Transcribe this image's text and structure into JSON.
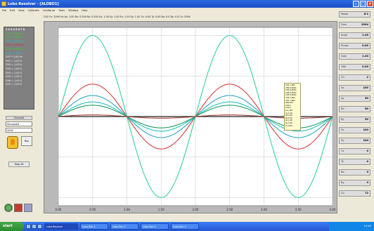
{
  "window": {
    "title": "Lobo Resolver - [ALOBO1]"
  },
  "menubar": [
    "File",
    "Edit",
    "View",
    "Calibrate",
    "Configure",
    "Tools",
    "Window",
    "Help"
  ],
  "info_line": "CH2 Fx: 2094 Hz  Ax: 1.00  Rx: 0.500  Ry: 0.500  Sx: 1.00  Sy: 1.00  Ex: 1.00  Ey: 1.00  Tx: 0.00  Ty: 0.00  Bx: 0.0  By: 0.0  Ch: 2094",
  "readout": {
    "header": "1 2 3 4 5 6 7 8",
    "lines": [
      {
        "text": "CH1 * 1.00 Vs",
        "color": "#20e020"
      },
      {
        "text": "CH2 * 0.500 Vs",
        "color": "#20e020"
      },
      {
        "text": "CH3 * 0.500 Vs",
        "color": "#20c8c8"
      },
      {
        "text": "CH4 * 0.500 Vs",
        "color": "#e02020"
      },
      {
        "text": "CH5 * 0.500 Vs",
        "color": "#20e020"
      },
      {
        "text": "CH6 * 1.00 Vs",
        "color": "#20c8c8"
      },
      {
        "text": "CH7 * 1.00 Vs",
        "color": "#ffffff"
      },
      {
        "text": "CH1 = 1.00 V",
        "color": "#ffffff"
      },
      {
        "text": "CH2 = 1.00 V",
        "color": "#ffffff"
      },
      {
        "text": "CH3 = 1.00 V",
        "color": "#ffffff"
      },
      {
        "text": "CH4 = 1.00 V",
        "color": "#ffffff"
      },
      {
        "text": "CH5 = 1.00 V",
        "color": "#ffffff"
      },
      {
        "text": "CH6 = 1.00 V",
        "color": "#ffffff"
      },
      {
        "text": "CH7 = 1.00 V",
        "color": "#ffffff"
      }
    ]
  },
  "controls": {
    "label": "Channel",
    "field1": "Sinusoidal",
    "field2": "2094",
    "button": "Run",
    "bottom": "Stop All"
  },
  "legend": [
    "CH1  1.00V",
    "CH2  0.500V",
    "CH3  0.500V",
    "CH4  0.500V",
    "CH5  0.500V",
    "CH6  1.00V",
    "CH7  1.00V",
    "2094 Hz",
    "0.00 s",
    "1.00 s",
    "Ax 1.00",
    "Ay 1.00",
    "Rx 0.50",
    "Ry 0.50",
    "Sx 1.00",
    "Sy 1.00",
    "Tx 0.00"
  ],
  "right_panel": [
    {
      "k": "Mode",
      "v": "X-1"
    },
    {
      "k": "Freq",
      "v": "2094"
    },
    {
      "k": "Ampl",
      "v": "1.00"
    },
    {
      "k": "Phase",
      "v": "0.00"
    },
    {
      "k": "Gain",
      "v": "1.00"
    },
    {
      "k": "Offs",
      "v": "0.00"
    },
    {
      "k": "Ch",
      "v": "2"
    },
    {
      "k": "Ax",
      "v": "100"
    },
    {
      "k": "Ay",
      "v": "50"
    },
    {
      "k": "Rx",
      "v": "50"
    },
    {
      "k": "Ry",
      "v": "50"
    },
    {
      "k": "Sx",
      "v": "100"
    },
    {
      "k": "Sy",
      "v": "100"
    },
    {
      "k": "Tx",
      "v": "0"
    },
    {
      "k": "Ty",
      "v": "0"
    },
    {
      "k": "Bx",
      "v": "0"
    },
    {
      "k": "By",
      "v": "0"
    },
    {
      "k": "Ch",
      "v": "72"
    }
  ],
  "taskbar": {
    "start": "start",
    "tasks": [
      "Lobo Resolver",
      "Lobo Doc 1",
      "Lobo Doc 2",
      "Lobo Doc 3",
      "Lobo Doc 4"
    ],
    "active_index": 0,
    "tray_time": "10:45"
  },
  "chart_data": {
    "type": "line",
    "x_ticks": [
      "0.00",
      "0.50",
      "1.00",
      "1.50",
      "2.00",
      "2.50",
      "3.00",
      "3.50",
      "4.00"
    ],
    "xlim": [
      0,
      4
    ],
    "ylim": [
      -1.1,
      1.1
    ],
    "series": [
      {
        "color": "#3ad29a",
        "amplitude": 1.0,
        "phase_deg": 0,
        "name": ""
      },
      {
        "color": "#d64040",
        "amplitude": 0.4,
        "phase_deg": 0,
        "name": ""
      },
      {
        "color": "#2aa6c0",
        "amplitude": 0.26,
        "phase_deg": 0,
        "name": ""
      },
      {
        "color": "#24c0c0",
        "amplitude": 0.18,
        "phase_deg": 0,
        "name": ""
      },
      {
        "color": "#20a060",
        "amplitude": 0.14,
        "phase_deg": 0,
        "name": ""
      },
      {
        "color": "#a03a3a",
        "amplitude": 0.02,
        "phase_deg": 0,
        "name": ""
      }
    ],
    "period_x": 2.0,
    "grid": true
  }
}
